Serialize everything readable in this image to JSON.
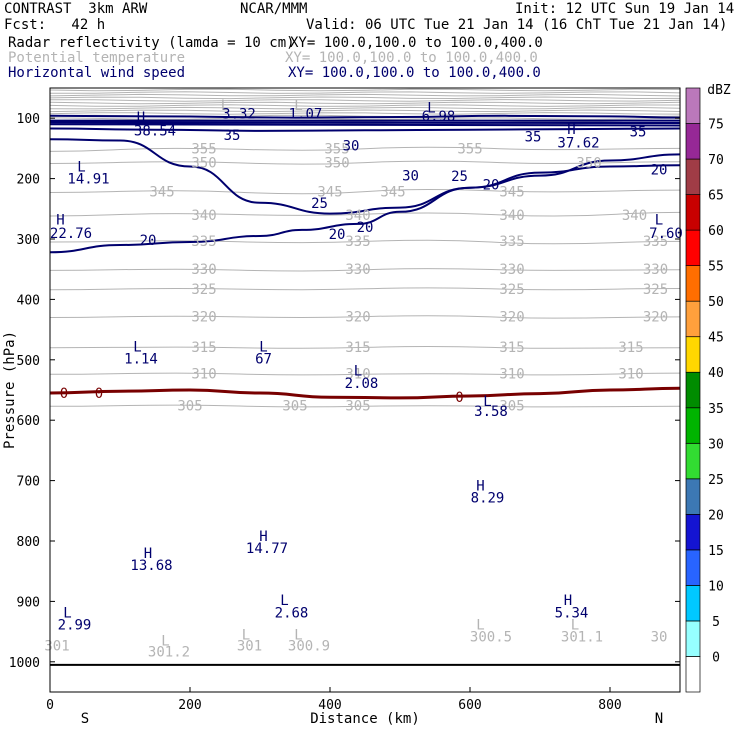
{
  "header": {
    "model": "CONTRAST  3km ARW",
    "org": "NCAR/MMM",
    "init": "Init: 12 UTC Sun 19 Jan 14",
    "fcst": "Fcst:   42 h",
    "valid": "Valid: 06 UTC Tue 21 Jan 14 (16 ChT Tue 21 Jan 14)",
    "fields": [
      {
        "name": "Radar reflectivity (lamda = 10 cm)",
        "xy": "XY= 100.0,100.0 to 100.0,400.0",
        "color": "#000000"
      },
      {
        "name": "Potential temperature",
        "xy": "XY= 100.0,100.0 to 100.0,400.0",
        "color": "#b4b4b4"
      },
      {
        "name": "Horizontal wind speed",
        "xy": "XY= 100.0,100.0 to 100.0,400.0",
        "color": "#00006e"
      }
    ]
  },
  "chart_data": {
    "type": "contour-cross-section",
    "xlabel": "Distance (km)",
    "ylabel": "Pressure (hPa)",
    "xlim": [
      0,
      900
    ],
    "ylim": [
      1050,
      50
    ],
    "xticks": [
      0,
      200,
      400,
      600,
      800
    ],
    "yticks": [
      100,
      200,
      300,
      400,
      500,
      600,
      700,
      800,
      900,
      1000
    ],
    "end_labels": [
      "S",
      "N"
    ],
    "surface_pressure": 1005,
    "colorbar": {
      "unit": "dBZ",
      "levels": [
        "0",
        "5",
        "10",
        "15",
        "20",
        "25",
        "30",
        "35",
        "40",
        "45",
        "50",
        "55",
        "60",
        "65",
        "70",
        "75"
      ],
      "colors": [
        "#ffffff",
        "#96ffff",
        "#00c8ff",
        "#2864ff",
        "#1414d2",
        "#3c78b4",
        "#32dc32",
        "#00b400",
        "#008c00",
        "#ffd700",
        "#ffa03c",
        "#ff6e00",
        "#ff0000",
        "#c80000",
        "#a03c46",
        "#962896",
        "#bb78bb"
      ]
    },
    "theta_contours": [
      {
        "value": 355,
        "p": [
          155,
          150,
          153,
          148,
          152,
          150
        ]
      },
      {
        "value": 350,
        "p": [
          175,
          172,
          176,
          171,
          175,
          172
        ]
      },
      {
        "value": 345,
        "p": [
          223,
          220,
          225,
          218,
          222,
          219
        ]
      },
      {
        "value": 340,
        "p": [
          262,
          258,
          261,
          257,
          262,
          256
        ]
      },
      {
        "value": 335,
        "p": [
          305,
          303,
          306,
          302,
          308,
          304
        ]
      },
      {
        "value": 330,
        "p": [
          352,
          350,
          353,
          349,
          352,
          351
        ]
      },
      {
        "value": 325,
        "p": [
          384,
          382,
          384,
          381,
          384,
          382
        ]
      },
      {
        "value": 320,
        "p": [
          430,
          428,
          430,
          427,
          431,
          429
        ]
      },
      {
        "value": 315,
        "p": [
          480,
          479,
          481,
          478,
          481,
          480
        ]
      },
      {
        "value": 310,
        "p": [
          524,
          522,
          525,
          523,
          525,
          522
        ]
      },
      {
        "value": 305,
        "p": [
          577,
          575,
          578,
          576,
          578,
          577
        ]
      }
    ],
    "wind_contours": [
      {
        "value": 35,
        "x": [
          0,
          150,
          350,
          500,
          650,
          800,
          900
        ],
        "p": [
          96,
          97,
          99,
          98,
          96,
          97,
          99
        ]
      },
      {
        "value": 30,
        "x": [
          0,
          150,
          300,
          450,
          600,
          750,
          900
        ],
        "p": [
          117,
          119,
          121,
          120,
          119,
          118,
          117
        ]
      },
      {
        "value": 25,
        "x": [
          0,
          100,
          200,
          300,
          400,
          500,
          600,
          700,
          800,
          900
        ],
        "p": [
          135,
          137,
          180,
          240,
          258,
          248,
          215,
          195,
          170,
          160
        ]
      },
      {
        "value": 20,
        "x": [
          0,
          100,
          200,
          300,
          360,
          440,
          500,
          600,
          700,
          800,
          900
        ],
        "p": [
          322,
          310,
          305,
          295,
          285,
          275,
          255,
          215,
          190,
          180,
          178
        ]
      }
    ],
    "zero_line": {
      "value": 0,
      "x": [
        0,
        100,
        200,
        300,
        400,
        500,
        600,
        700,
        800,
        900
      ],
      "p": [
        555,
        552,
        550,
        555,
        562,
        563,
        560,
        556,
        550,
        547
      ]
    },
    "text_labels": [
      {
        "text": "L",
        "x": 250,
        "p": 78,
        "color": "#b4b4b4"
      },
      {
        "text": "3.32",
        "x": 270,
        "p": 92,
        "color": "#00006e"
      },
      {
        "text": "L",
        "x": 355,
        "p": 78,
        "color": "#b4b4b4"
      },
      {
        "text": "1.07",
        "x": 365,
        "p": 92,
        "color": "#00006e"
      },
      {
        "text": "L",
        "x": 545,
        "p": 82,
        "color": "#00006e"
      },
      {
        "text": "6.98",
        "x": 555,
        "p": 96,
        "color": "#00006e"
      },
      {
        "text": "H",
        "x": 130,
        "p": 98,
        "color": "#00006e"
      },
      {
        "text": "38.54",
        "x": 150,
        "p": 120,
        "color": "#00006e"
      },
      {
        "text": "H",
        "x": 745,
        "p": 118,
        "color": "#00006e"
      },
      {
        "text": "37.62",
        "x": 755,
        "p": 140,
        "color": "#00006e"
      },
      {
        "text": "35",
        "x": 260,
        "p": 128,
        "color": "#00006e"
      },
      {
        "text": "35",
        "x": 690,
        "p": 130,
        "color": "#00006e"
      },
      {
        "text": "35",
        "x": 840,
        "p": 122,
        "color": "#00006e"
      },
      {
        "text": "30",
        "x": 430,
        "p": 145,
        "color": "#00006e"
      },
      {
        "text": "30",
        "x": 515,
        "p": 195,
        "color": "#00006e"
      },
      {
        "text": "25",
        "x": 385,
        "p": 240,
        "color": "#00006e"
      },
      {
        "text": "25",
        "x": 585,
        "p": 196,
        "color": "#00006e"
      },
      {
        "text": "20",
        "x": 630,
        "p": 210,
        "color": "#00006e"
      },
      {
        "text": "20",
        "x": 870,
        "p": 185,
        "color": "#00006e"
      },
      {
        "text": "20",
        "x": 140,
        "p": 302,
        "color": "#00006e"
      },
      {
        "text": "20",
        "x": 410,
        "p": 292,
        "color": "#00006e"
      },
      {
        "text": "20",
        "x": 450,
        "p": 280,
        "color": "#00006e"
      },
      {
        "text": "L",
        "x": 45,
        "p": 180,
        "color": "#00006e"
      },
      {
        "text": "14.91",
        "x": 55,
        "p": 200,
        "color": "#00006e"
      },
      {
        "text": "H",
        "x": 15,
        "p": 268,
        "color": "#00006e"
      },
      {
        "text": "22.76",
        "x": 30,
        "p": 290,
        "color": "#00006e"
      },
      {
        "text": "L",
        "x": 870,
        "p": 268,
        "color": "#00006e"
      },
      {
        "text": "7.60",
        "x": 880,
        "p": 290,
        "color": "#00006e"
      },
      {
        "text": "L",
        "x": 125,
        "p": 478,
        "color": "#00006e"
      },
      {
        "text": "1.14",
        "x": 130,
        "p": 498,
        "color": "#00006e"
      },
      {
        "text": "L",
        "x": 305,
        "p": 478,
        "color": "#00006e"
      },
      {
        "text": "67",
        "x": 305,
        "p": 498,
        "color": "#00006e"
      },
      {
        "text": "L",
        "x": 440,
        "p": 518,
        "color": "#00006e"
      },
      {
        "text": "2.08",
        "x": 445,
        "p": 538,
        "color": "#00006e"
      },
      {
        "text": "L",
        "x": 625,
        "p": 568,
        "color": "#00006e"
      },
      {
        "text": "3.58",
        "x": 630,
        "p": 585,
        "color": "#00006e"
      },
      {
        "text": "H",
        "x": 615,
        "p": 708,
        "color": "#00006e"
      },
      {
        "text": "8.29",
        "x": 625,
        "p": 728,
        "color": "#00006e"
      },
      {
        "text": "H",
        "x": 305,
        "p": 792,
        "color": "#00006e"
      },
      {
        "text": "14.77",
        "x": 310,
        "p": 812,
        "color": "#00006e"
      },
      {
        "text": "H",
        "x": 140,
        "p": 820,
        "color": "#00006e"
      },
      {
        "text": "13.68",
        "x": 145,
        "p": 840,
        "color": "#00006e"
      },
      {
        "text": "L",
        "x": 25,
        "p": 918,
        "color": "#00006e"
      },
      {
        "text": "2.99",
        "x": 35,
        "p": 938,
        "color": "#00006e"
      },
      {
        "text": "L",
        "x": 335,
        "p": 898,
        "color": "#00006e"
      },
      {
        "text": "2.68",
        "x": 345,
        "p": 918,
        "color": "#00006e"
      },
      {
        "text": "H",
        "x": 740,
        "p": 898,
        "color": "#00006e"
      },
      {
        "text": "5.34",
        "x": 745,
        "p": 918,
        "color": "#00006e"
      },
      {
        "text": "L",
        "x": 165,
        "p": 965,
        "color": "#b4b4b4"
      },
      {
        "text": "301.2",
        "x": 170,
        "p": 983,
        "color": "#b4b4b4"
      },
      {
        "text": "L",
        "x": 280,
        "p": 955,
        "color": "#b4b4b4"
      },
      {
        "text": "301",
        "x": 285,
        "p": 973,
        "color": "#b4b4b4"
      },
      {
        "text": "L",
        "x": 355,
        "p": 955,
        "color": "#b4b4b4"
      },
      {
        "text": "300.9",
        "x": 370,
        "p": 973,
        "color": "#b4b4b4"
      },
      {
        "text": "L",
        "x": 615,
        "p": 938,
        "color": "#b4b4b4"
      },
      {
        "text": "300.5",
        "x": 630,
        "p": 958,
        "color": "#b4b4b4"
      },
      {
        "text": "L",
        "x": 750,
        "p": 938,
        "color": "#b4b4b4"
      },
      {
        "text": "301.1",
        "x": 760,
        "p": 958,
        "color": "#b4b4b4"
      },
      {
        "text": "301",
        "x": 10,
        "p": 973,
        "color": "#b4b4b4"
      },
      {
        "text": "30",
        "x": 870,
        "p": 958,
        "color": "#b4b4b4"
      },
      {
        "text": "0",
        "x": 20,
        "p": 555,
        "color": "#780000"
      },
      {
        "text": "0",
        "x": 70,
        "p": 555,
        "color": "#780000"
      },
      {
        "text": "0",
        "x": 585,
        "p": 562,
        "color": "#780000"
      }
    ],
    "theta_labels": [
      {
        "text": "355",
        "x": 220,
        "p": 150
      },
      {
        "text": "355",
        "x": 410,
        "p": 150
      },
      {
        "text": "355",
        "x": 600,
        "p": 150
      },
      {
        "text": "350",
        "x": 220,
        "p": 173
      },
      {
        "text": "350",
        "x": 410,
        "p": 173
      },
      {
        "text": "350",
        "x": 770,
        "p": 173
      },
      {
        "text": "345",
        "x": 160,
        "p": 221
      },
      {
        "text": "345",
        "x": 400,
        "p": 221
      },
      {
        "text": "345",
        "x": 490,
        "p": 221
      },
      {
        "text": "345",
        "x": 660,
        "p": 221
      },
      {
        "text": "340",
        "x": 220,
        "p": 260
      },
      {
        "text": "340",
        "x": 440,
        "p": 260
      },
      {
        "text": "340",
        "x": 660,
        "p": 260
      },
      {
        "text": "340",
        "x": 835,
        "p": 260
      },
      {
        "text": "335",
        "x": 220,
        "p": 303
      },
      {
        "text": "335",
        "x": 440,
        "p": 303
      },
      {
        "text": "335",
        "x": 660,
        "p": 303
      },
      {
        "text": "335",
        "x": 865,
        "p": 303
      },
      {
        "text": "330",
        "x": 220,
        "p": 350
      },
      {
        "text": "330",
        "x": 440,
        "p": 350
      },
      {
        "text": "330",
        "x": 660,
        "p": 350
      },
      {
        "text": "330",
        "x": 865,
        "p": 350
      },
      {
        "text": "325",
        "x": 220,
        "p": 383
      },
      {
        "text": "325",
        "x": 660,
        "p": 383
      },
      {
        "text": "325",
        "x": 865,
        "p": 383
      },
      {
        "text": "320",
        "x": 220,
        "p": 428
      },
      {
        "text": "320",
        "x": 440,
        "p": 428
      },
      {
        "text": "320",
        "x": 660,
        "p": 428
      },
      {
        "text": "320",
        "x": 865,
        "p": 428
      },
      {
        "text": "315",
        "x": 220,
        "p": 479
      },
      {
        "text": "315",
        "x": 440,
        "p": 479
      },
      {
        "text": "315",
        "x": 660,
        "p": 479
      },
      {
        "text": "315",
        "x": 830,
        "p": 479
      },
      {
        "text": "310",
        "x": 220,
        "p": 523
      },
      {
        "text": "310",
        "x": 440,
        "p": 523
      },
      {
        "text": "310",
        "x": 660,
        "p": 523
      },
      {
        "text": "310",
        "x": 830,
        "p": 523
      },
      {
        "text": "305",
        "x": 200,
        "p": 576
      },
      {
        "text": "305",
        "x": 350,
        "p": 576
      },
      {
        "text": "305",
        "x": 440,
        "p": 576
      },
      {
        "text": "305",
        "x": 660,
        "p": 576
      }
    ]
  }
}
